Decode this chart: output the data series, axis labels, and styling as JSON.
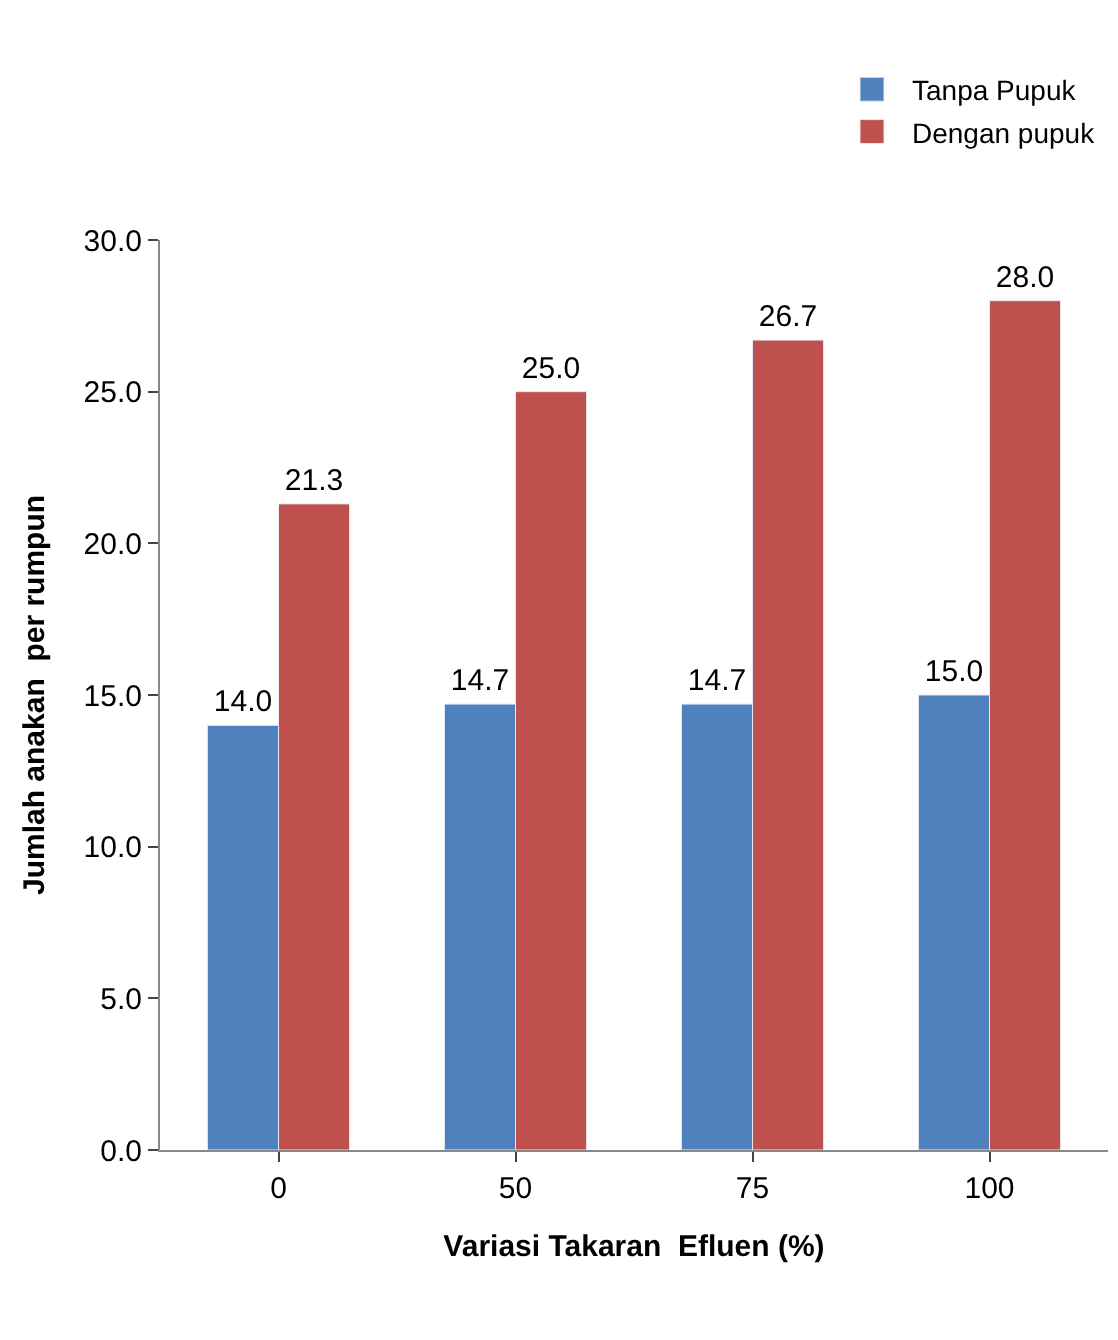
{
  "chart_data": {
    "type": "bar",
    "xlabel": "Variasi Takaran  Efluen (%)",
    "ylabel": "Jumlah anakan  per rumpun",
    "categories": [
      "0",
      "50",
      "75",
      "100"
    ],
    "series": [
      {
        "name": "Tanpa Pupuk",
        "color": "#4f81bd",
        "values": [
          14.0,
          14.7,
          14.7,
          15.0
        ],
        "value_labels": [
          "14.0",
          "14.7",
          "14.7",
          "15.0"
        ]
      },
      {
        "name": "Dengan pupuk",
        "color": "#c0504d",
        "values": [
          21.3,
          25.0,
          26.7,
          28.0
        ],
        "value_labels": [
          "21.3",
          "25.0",
          "26.7",
          "28.0"
        ]
      }
    ],
    "ylim": [
      0,
      30
    ],
    "yticks": [
      {
        "value": 0,
        "label": "0.0"
      },
      {
        "value": 5,
        "label": "5.0"
      },
      {
        "value": 10,
        "label": "10.0"
      },
      {
        "value": 15,
        "label": "15.0"
      },
      {
        "value": 20,
        "label": "20.0"
      },
      {
        "value": 25,
        "label": "25.0"
      },
      {
        "value": 30,
        "label": "30.0"
      }
    ],
    "legend": "top right"
  }
}
